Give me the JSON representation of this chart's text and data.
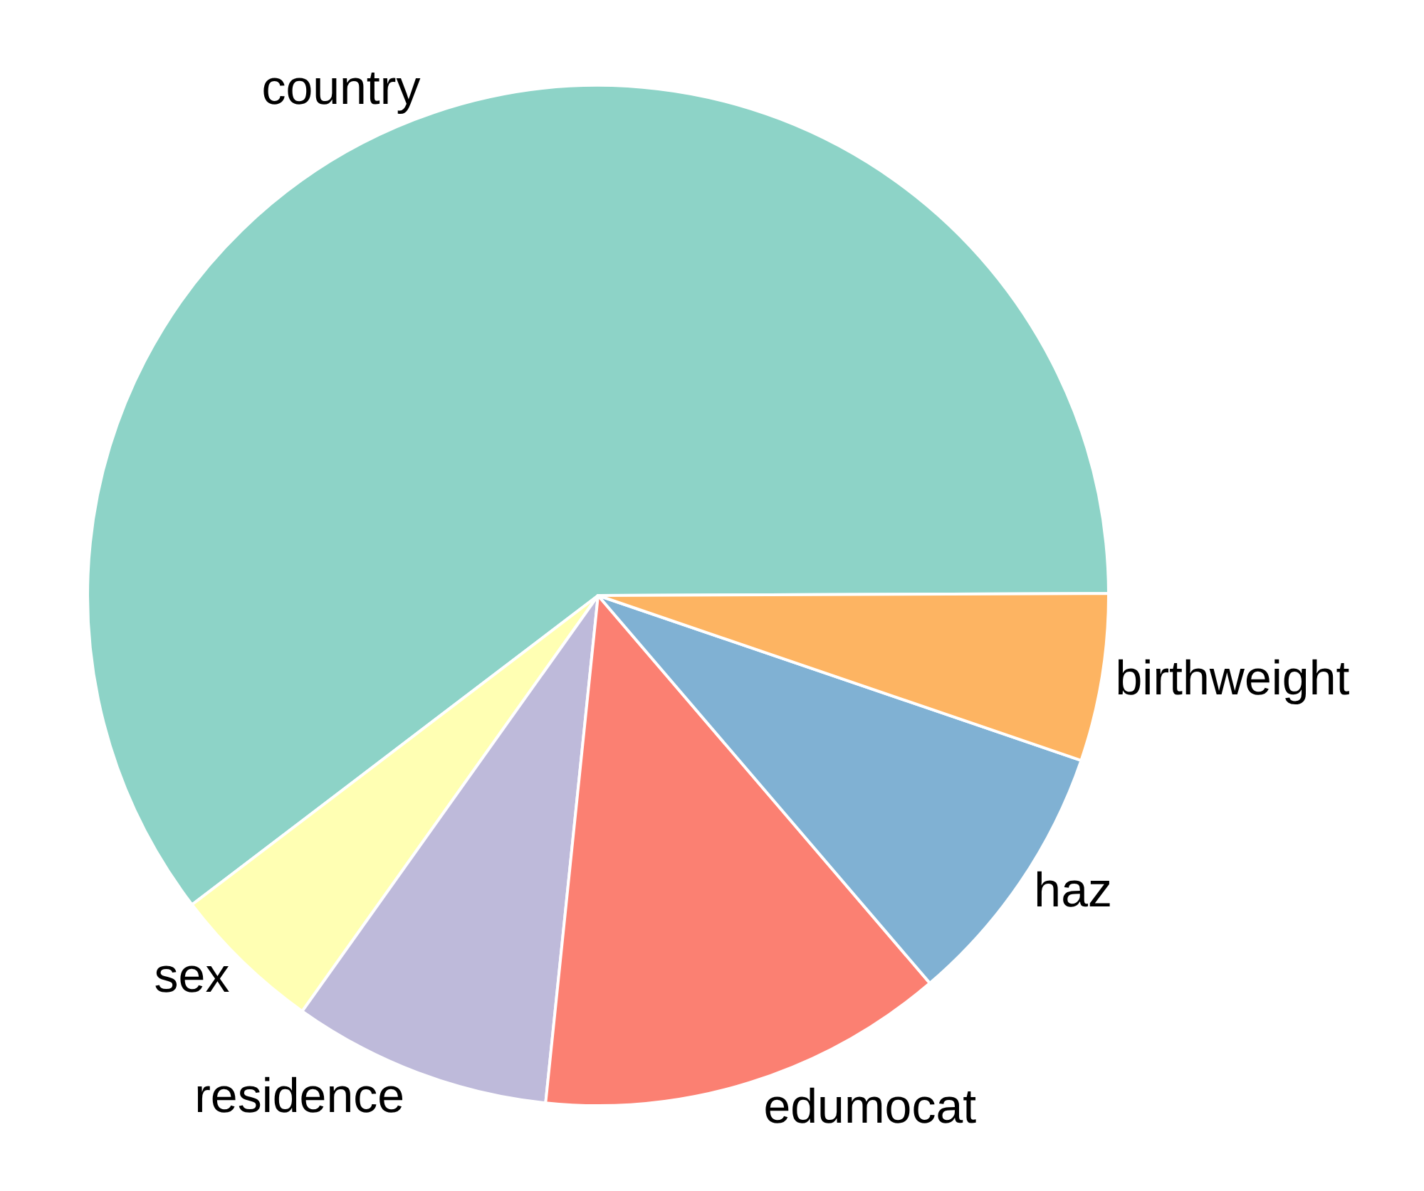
{
  "chart_data": {
    "type": "pie",
    "categories": [
      "country",
      "sex",
      "residence",
      "edumocat",
      "haz",
      "birthweight"
    ],
    "values": [
      60.3,
      4.8,
      8.2,
      12.9,
      8.5,
      5.3
    ],
    "colors": [
      "#8dd3c7",
      "#ffffb3",
      "#bebada",
      "#fb8072",
      "#80b1d3",
      "#fdb462"
    ],
    "legend": false
  }
}
